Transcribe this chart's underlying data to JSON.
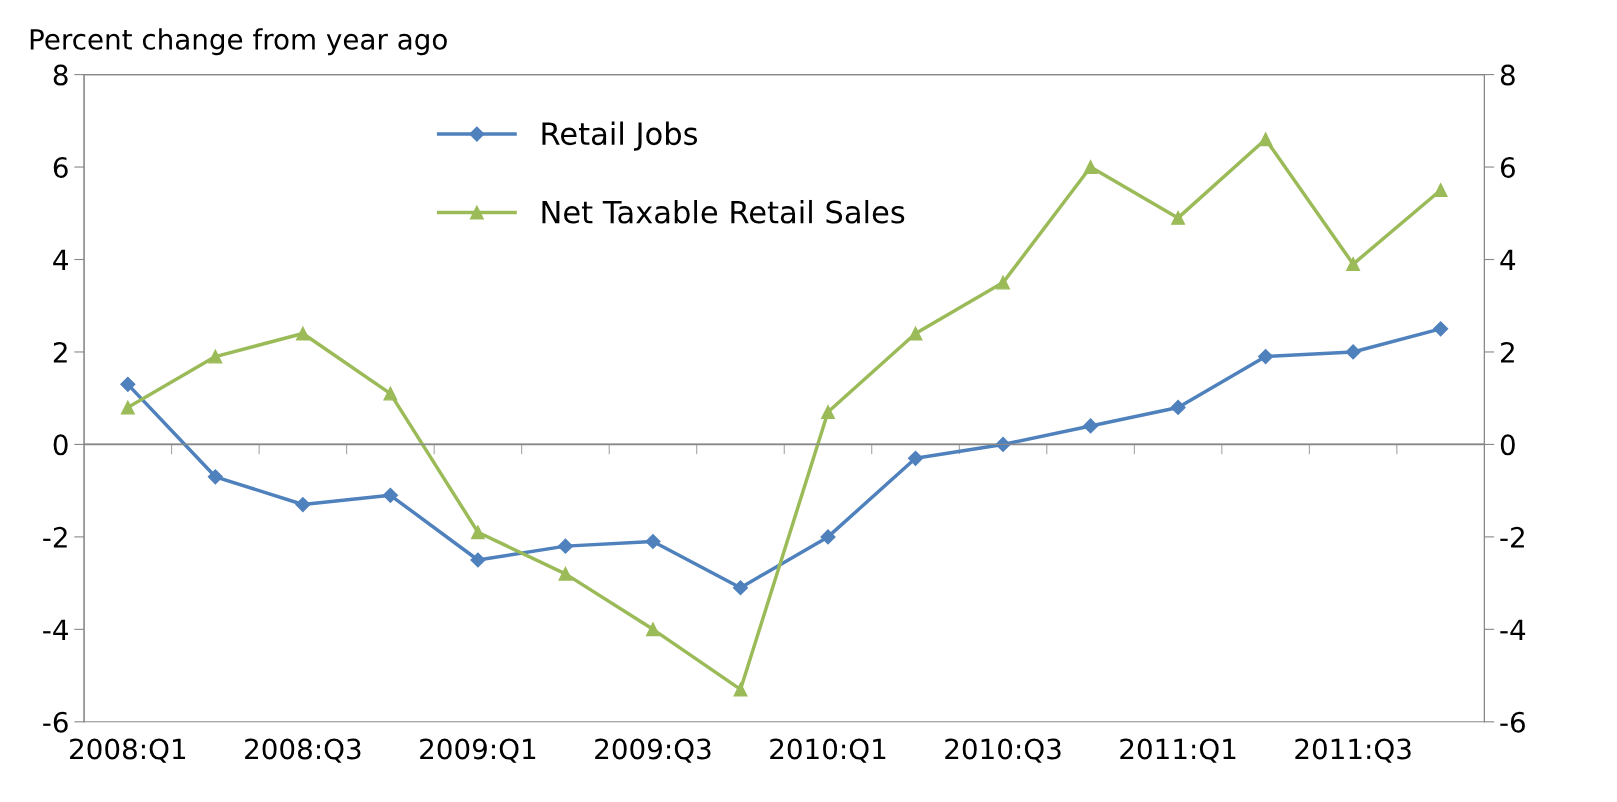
{
  "chart_data": {
    "type": "line",
    "ylabel": "Percent change from year ago",
    "categories": [
      "2008:Q1",
      null,
      "2008:Q3",
      null,
      "2009:Q1",
      null,
      "2009:Q3",
      null,
      "2010:Q1",
      null,
      "2010:Q3",
      null,
      "2011:Q1",
      null,
      "2011:Q3",
      null
    ],
    "series": [
      {
        "name": "Retail Jobs",
        "color": "#4f81bd",
        "marker": "diamond",
        "values": [
          1.3,
          -0.7,
          -1.3,
          -1.1,
          -2.5,
          -2.2,
          -2.1,
          -3.1,
          -2.0,
          -0.3,
          0.0,
          0.4,
          0.8,
          1.9,
          2.0,
          2.5
        ]
      },
      {
        "name": "Net Taxable Retail Sales",
        "color": "#9bbb59",
        "marker": "triangle",
        "values": [
          0.8,
          1.9,
          2.4,
          1.1,
          -1.9,
          -2.8,
          -4.0,
          -5.3,
          0.7,
          2.4,
          3.5,
          6.0,
          4.9,
          6.6,
          3.9,
          5.5
        ]
      }
    ],
    "ylim": [
      -6,
      8
    ],
    "yticks": [
      -6,
      -4,
      -2,
      0,
      2,
      4,
      6,
      8
    ],
    "y2lim": [
      -6,
      8
    ],
    "y2ticks": [
      -6,
      -4,
      -2,
      0,
      2,
      4,
      6,
      8
    ],
    "ref_lines": [
      {
        "axis": "y",
        "value": 0,
        "color": "#888888"
      }
    ],
    "legend": "top",
    "grid": false,
    "line_style": "solid"
  }
}
